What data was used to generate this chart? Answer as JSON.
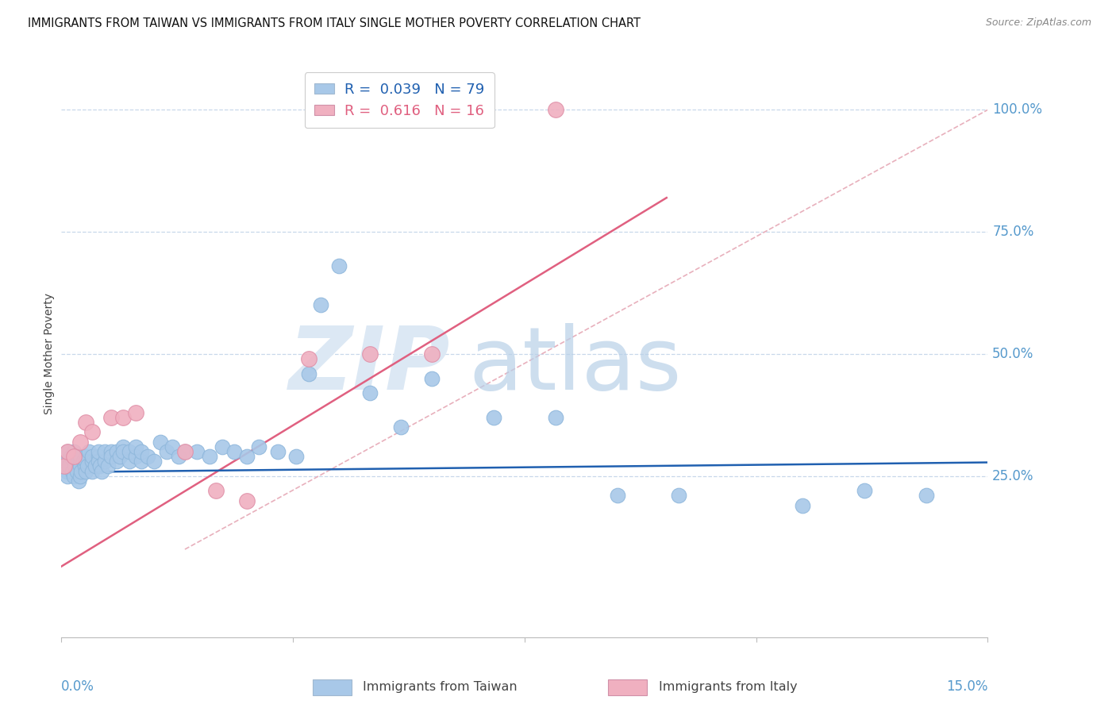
{
  "title": "IMMIGRANTS FROM TAIWAN VS IMMIGRANTS FROM ITALY SINGLE MOTHER POVERTY CORRELATION CHART",
  "source": "Source: ZipAtlas.com",
  "ylabel_label": "Single Mother Poverty",
  "legend_label_taiwan": "Immigrants from Taiwan",
  "legend_label_italy": "Immigrants from Italy",
  "taiwan_color": "#a8c8e8",
  "taiwan_line_color": "#2060b0",
  "italy_color": "#f0b0c0",
  "italy_line_color": "#e06080",
  "taiwan_R": 0.039,
  "taiwan_N": 79,
  "italy_R": 0.616,
  "italy_N": 16,
  "taiwan_scatter_x": [
    0.0005,
    0.0008,
    0.001,
    0.001,
    0.001,
    0.0012,
    0.0015,
    0.0018,
    0.002,
    0.002,
    0.002,
    0.0022,
    0.0025,
    0.0028,
    0.003,
    0.003,
    0.003,
    0.003,
    0.0032,
    0.0035,
    0.0038,
    0.004,
    0.004,
    0.004,
    0.0042,
    0.0045,
    0.005,
    0.005,
    0.005,
    0.0055,
    0.006,
    0.006,
    0.006,
    0.0062,
    0.0065,
    0.007,
    0.007,
    0.0075,
    0.008,
    0.008,
    0.009,
    0.009,
    0.0095,
    0.01,
    0.01,
    0.011,
    0.011,
    0.012,
    0.012,
    0.013,
    0.013,
    0.014,
    0.015,
    0.016,
    0.017,
    0.018,
    0.019,
    0.02,
    0.022,
    0.024,
    0.026,
    0.028,
    0.03,
    0.032,
    0.035,
    0.038,
    0.04,
    0.042,
    0.045,
    0.05,
    0.055,
    0.06,
    0.07,
    0.08,
    0.09,
    0.1,
    0.12,
    0.13,
    0.14
  ],
  "taiwan_scatter_y": [
    0.27,
    0.26,
    0.3,
    0.28,
    0.25,
    0.27,
    0.29,
    0.26,
    0.28,
    0.3,
    0.25,
    0.27,
    0.26,
    0.24,
    0.28,
    0.27,
    0.29,
    0.25,
    0.26,
    0.28,
    0.27,
    0.29,
    0.26,
    0.28,
    0.27,
    0.3,
    0.28,
    0.26,
    0.29,
    0.27,
    0.29,
    0.28,
    0.3,
    0.27,
    0.26,
    0.28,
    0.3,
    0.27,
    0.3,
    0.29,
    0.3,
    0.28,
    0.29,
    0.31,
    0.3,
    0.28,
    0.3,
    0.29,
    0.31,
    0.28,
    0.3,
    0.29,
    0.28,
    0.32,
    0.3,
    0.31,
    0.29,
    0.3,
    0.3,
    0.29,
    0.31,
    0.3,
    0.29,
    0.31,
    0.3,
    0.29,
    0.46,
    0.6,
    0.68,
    0.42,
    0.35,
    0.45,
    0.37,
    0.37,
    0.21,
    0.21,
    0.19,
    0.22,
    0.21
  ],
  "italy_scatter_x": [
    0.0005,
    0.001,
    0.002,
    0.003,
    0.004,
    0.005,
    0.008,
    0.01,
    0.012,
    0.02,
    0.025,
    0.03,
    0.04,
    0.05,
    0.06,
    0.08
  ],
  "italy_scatter_y": [
    0.27,
    0.3,
    0.29,
    0.32,
    0.36,
    0.34,
    0.37,
    0.37,
    0.38,
    0.3,
    0.22,
    0.2,
    0.49,
    0.5,
    0.5,
    1.0
  ],
  "taiwan_trendline_x": [
    0.0,
    0.15
  ],
  "taiwan_trendline_y": [
    0.258,
    0.278
  ],
  "italy_trendline_x": [
    0.0,
    0.098
  ],
  "italy_trendline_y": [
    0.065,
    0.82
  ],
  "diag_line_x": [
    0.02,
    0.15
  ],
  "diag_line_y": [
    0.1,
    1.0
  ],
  "xmin": 0.0,
  "xmax": 0.15,
  "ymin": -0.08,
  "ymax": 1.08,
  "yticks": [
    0.25,
    0.5,
    0.75,
    1.0
  ],
  "yticklabels": [
    "25.0%",
    "50.0%",
    "75.0%",
    "100.0%"
  ],
  "xtick_positions": [
    0.0,
    0.0375,
    0.075,
    0.1125,
    0.15
  ],
  "background_color": "#ffffff",
  "grid_color": "#c8d8ea",
  "axis_label_color": "#5599cc",
  "title_fontsize": 10.5,
  "source_fontsize": 9,
  "legend_fontsize": 13,
  "tick_label_fontsize": 12
}
